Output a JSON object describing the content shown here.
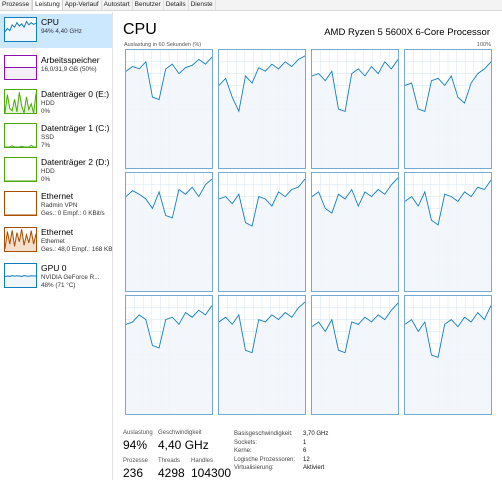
{
  "tabs": [
    {
      "label": "Prozesse"
    },
    {
      "label": "Leistung"
    },
    {
      "label": "App-Verlauf"
    },
    {
      "label": "Autostart"
    },
    {
      "label": "Benutzer"
    },
    {
      "label": "Details"
    },
    {
      "label": "Dienste"
    }
  ],
  "active_tab_index": 1,
  "sidebar": {
    "items": [
      {
        "title": "CPU",
        "sub1": "94% 4,40 GHz",
        "sub2": "",
        "sub3": "",
        "color": "#117dbb",
        "fill": "#f1f6fa",
        "selected": true,
        "spark": [
          40,
          55,
          45,
          70,
          60,
          80,
          65,
          75,
          60,
          85,
          70,
          80,
          72,
          78
        ]
      },
      {
        "title": "Arbeitsspeicher",
        "sub1": "16,0/31,9 GB (50%)",
        "sub2": "",
        "sub3": "",
        "color": "#8b12ae",
        "fill": "#f4eef7",
        "selected": false,
        "spark": [
          50,
          50,
          50,
          50,
          50,
          50,
          50,
          50,
          50,
          50,
          50,
          50,
          50,
          50
        ]
      },
      {
        "title": "Datenträger 0 (E:)",
        "sub1": "HDD",
        "sub2": "0%",
        "sub3": "",
        "color": "#4da60c",
        "fill": "#e7f3dc",
        "selected": false,
        "spark": [
          0,
          80,
          20,
          10,
          60,
          5,
          90,
          30,
          0,
          70,
          15,
          40,
          0,
          85
        ]
      },
      {
        "title": "Datenträger 1 (C:)",
        "sub1": "SSD",
        "sub2": "7%",
        "sub3": "",
        "color": "#4da60c",
        "fill": "#eff8e8",
        "selected": false,
        "spark": [
          0,
          0,
          0,
          5,
          0,
          0,
          0,
          3,
          0,
          0,
          0,
          7,
          0,
          0
        ]
      },
      {
        "title": "Datenträger 2 (D:)",
        "sub1": "HDD",
        "sub2": "0%",
        "sub3": "",
        "color": "#4da60c",
        "fill": "#eff8e8",
        "selected": false,
        "spark": [
          0,
          0,
          0,
          0,
          0,
          0,
          0,
          0,
          0,
          0,
          0,
          0,
          0,
          0
        ]
      },
      {
        "title": "Ethernet",
        "sub1": "Radmin VPN",
        "sub2": "Ges.: 0 Empf.: 0 KBit/s",
        "sub3": "",
        "color": "#a74f01",
        "fill": "#fcf3eb",
        "selected": false,
        "spark": [
          0,
          0,
          0,
          0,
          0,
          0,
          0,
          0,
          0,
          0,
          0,
          0,
          0,
          0
        ]
      },
      {
        "title": "Ethernet",
        "sub1": "Ethernet",
        "sub2": "Ges.: 48,0 Empf.: 168 KB",
        "sub3": "",
        "color": "#a74f01",
        "fill": "#f5dfcc",
        "selected": false,
        "spark": [
          10,
          85,
          30,
          90,
          20,
          80,
          40,
          95,
          25,
          70,
          35,
          88,
          30,
          75
        ]
      },
      {
        "title": "GPU 0",
        "sub1": "NVIDIA GeForce R...",
        "sub2": "48% (71 °C)",
        "sub3": "",
        "color": "#117dbb",
        "fill": "#f1f6fa",
        "selected": false,
        "spark": [
          45,
          48,
          46,
          50,
          47,
          49,
          48,
          46,
          50,
          48,
          47,
          49,
          48,
          48
        ]
      }
    ]
  },
  "main": {
    "title": "CPU",
    "processor": "AMD Ryzen 5 5600X 6-Core Processor",
    "graph_label": "Auslastung in 60 Sekunden (%)",
    "graph_max": "100%",
    "line_color": "#117dbb",
    "fill_color": "#f1f6fa",
    "grid_color": "#d9eaf4",
    "cores": [
      [
        82,
        86,
        84,
        90,
        60,
        58,
        84,
        88,
        80,
        85,
        87,
        92,
        88,
        94
      ],
      [
        70,
        76,
        60,
        48,
        78,
        72,
        85,
        82,
        88,
        84,
        90,
        86,
        92,
        95
      ],
      [
        78,
        80,
        74,
        82,
        50,
        48,
        80,
        84,
        78,
        86,
        80,
        90,
        84,
        92
      ],
      [
        70,
        72,
        50,
        48,
        74,
        76,
        70,
        78,
        60,
        55,
        72,
        80,
        84,
        90
      ],
      [
        80,
        85,
        82,
        78,
        70,
        84,
        64,
        62,
        86,
        82,
        88,
        80,
        90,
        95
      ],
      [
        78,
        80,
        74,
        82,
        58,
        55,
        80,
        78,
        72,
        84,
        80,
        86,
        88,
        95
      ],
      [
        80,
        84,
        70,
        66,
        82,
        78,
        86,
        72,
        84,
        80,
        86,
        82,
        90,
        96
      ],
      [
        76,
        80,
        72,
        84,
        60,
        56,
        82,
        80,
        76,
        84,
        80,
        88,
        86,
        94
      ],
      [
        76,
        78,
        84,
        80,
        58,
        56,
        80,
        82,
        76,
        86,
        82,
        88,
        84,
        92
      ],
      [
        78,
        82,
        76,
        84,
        54,
        52,
        80,
        78,
        84,
        80,
        86,
        82,
        90,
        95
      ],
      [
        74,
        78,
        70,
        80,
        54,
        52,
        78,
        76,
        82,
        78,
        84,
        80,
        88,
        94
      ],
      [
        76,
        80,
        70,
        78,
        50,
        48,
        76,
        80,
        74,
        82,
        78,
        86,
        80,
        92
      ]
    ],
    "stats": {
      "util_label": "Auslastung",
      "util_value": "94%",
      "speed_label": "Geschwindigkeit",
      "speed_value": "4,40 GHz",
      "proc_label": "Prozesse",
      "proc_value": "236",
      "threads_label": "Threads",
      "threads_value": "4298",
      "handles_label": "Handles",
      "handles_value": "104300"
    },
    "details": [
      {
        "key": "Basisgeschwindigkeit:",
        "value": "3,70 GHz"
      },
      {
        "key": "Sockets:",
        "value": "1"
      },
      {
        "key": "Kerne:",
        "value": "6"
      },
      {
        "key": "Logische Prozessoren:",
        "value": "12"
      },
      {
        "key": "Virtualisierung:",
        "value": "Aktiviert"
      }
    ]
  }
}
